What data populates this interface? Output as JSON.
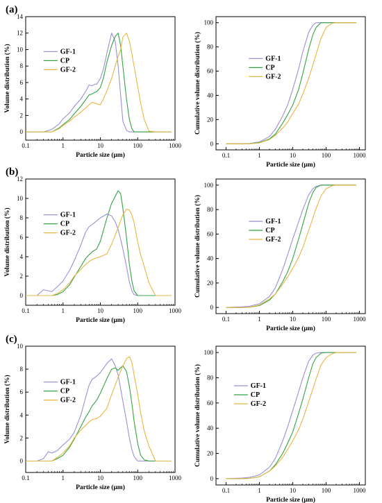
{
  "panel_labels": [
    "(a)",
    "(b)",
    "(c)"
  ],
  "series_colors": {
    "GF-1": "#9b8fd6",
    "CP": "#33a343",
    "GF-2": "#e8b540"
  },
  "chart_data": [
    {
      "type": "line",
      "panel": "(a)",
      "kind": "volume",
      "xlabel": "Particle size (μm)",
      "ylabel": "Volume distribution (%)",
      "xscale": "log",
      "xlim": [
        0.1,
        1000
      ],
      "ylim": [
        -1,
        14
      ],
      "xticks": [
        "0.1",
        "1",
        "10",
        "100",
        "1000"
      ],
      "yticks": [
        "0",
        "2",
        "4",
        "6",
        "8",
        "10",
        "12",
        "14"
      ],
      "legend": [
        "GF-1",
        "CP",
        "GF-2"
      ],
      "legend_position": "upper-left",
      "x": [
        0.1,
        0.3,
        0.5,
        0.8,
        1,
        1.5,
        2,
        3,
        4,
        5,
        6,
        7,
        8,
        10,
        12,
        15,
        20,
        25,
        30,
        35,
        40,
        50,
        60,
        70,
        80,
        100,
        120,
        150,
        200,
        300,
        500,
        800
      ],
      "series": [
        {
          "name": "GF-1",
          "values": [
            0,
            0,
            0.3,
            1,
            1.6,
            2.3,
            3.1,
            4,
            4.9,
            5.7,
            5.6,
            5.8,
            5.8,
            6.5,
            7.6,
            9.6,
            12,
            11,
            8,
            4.5,
            1.3,
            0.2,
            0,
            0,
            0,
            0,
            0,
            0,
            0,
            0,
            0,
            0
          ]
        },
        {
          "name": "CP",
          "values": [
            0,
            0,
            0,
            0.5,
            0.9,
            1.5,
            2.2,
            3.1,
            3.9,
            4.5,
            4.6,
            4.8,
            4.9,
            5.4,
            6.5,
            8.5,
            10.5,
            11.6,
            12,
            10.5,
            8,
            4,
            1.5,
            0.4,
            0,
            0,
            0,
            0,
            0,
            0,
            0,
            0
          ]
        },
        {
          "name": "GF-2",
          "values": [
            0,
            0,
            0,
            0.4,
            0.8,
            1.3,
            1.8,
            2.4,
            2.9,
            3.3,
            3.6,
            3.5,
            3.4,
            3.3,
            4,
            5,
            6.5,
            8,
            9.2,
            10,
            11.5,
            12,
            11,
            9.5,
            8,
            5.5,
            3.5,
            1.5,
            0.1,
            0,
            0,
            0
          ]
        }
      ]
    },
    {
      "type": "line",
      "panel": "(a)",
      "kind": "cumulative",
      "xlabel": "Particle size (μm)",
      "ylabel": "Cumulative volume distribution (%)",
      "xscale": "log",
      "xlim": [
        0.05,
        1500
      ],
      "ylim": [
        -5,
        105
      ],
      "xticks": [
        "0.1",
        "1",
        "10",
        "100",
        "1000"
      ],
      "yticks": [
        "0",
        "20",
        "40",
        "60",
        "80",
        "100"
      ],
      "legend": [
        "GF-1",
        "CP",
        "GF-2"
      ],
      "legend_position": "center",
      "x": [
        0.1,
        0.3,
        0.5,
        1,
        2,
        3,
        5,
        7,
        10,
        15,
        20,
        30,
        40,
        50,
        70,
        100,
        150,
        200,
        300,
        500,
        800
      ],
      "series": [
        {
          "name": "GF-1",
          "values": [
            0,
            0,
            0.2,
            1.5,
            6,
            12,
            23,
            32,
            45,
            62,
            76,
            92,
            98,
            100,
            100,
            100,
            100,
            100,
            100,
            100,
            100
          ]
        },
        {
          "name": "CP",
          "values": [
            0,
            0,
            0.1,
            1,
            4,
            8,
            17,
            24,
            32,
            45,
            58,
            78,
            90,
            96,
            100,
            100,
            100,
            100,
            100,
            100,
            100
          ]
        },
        {
          "name": "GF-2",
          "values": [
            0,
            0,
            0,
            0.8,
            3.5,
            7,
            13,
            18,
            25,
            33,
            41,
            54,
            65,
            74,
            87,
            96,
            99.5,
            100,
            100,
            100,
            100
          ]
        }
      ]
    },
    {
      "type": "line",
      "panel": "(b)",
      "kind": "volume",
      "xlabel": "Particle size (μm)",
      "ylabel": "Volume distribution (%)",
      "xscale": "log",
      "xlim": [
        0.1,
        1000
      ],
      "ylim": [
        -1,
        12
      ],
      "xticks": [
        "0.1",
        "1",
        "10",
        "100",
        "1000"
      ],
      "yticks": [
        "0",
        "2",
        "4",
        "6",
        "8",
        "10",
        "12"
      ],
      "legend": [
        "GF-1",
        "CP",
        "GF-2"
      ],
      "legend_position": "upper-left",
      "x": [
        0.1,
        0.2,
        0.3,
        0.5,
        0.7,
        1,
        1.5,
        2,
        3,
        4,
        5,
        6,
        8,
        10,
        15,
        20,
        25,
        30,
        35,
        40,
        50,
        60,
        70,
        80,
        100,
        120,
        150,
        200,
        300,
        500,
        800
      ],
      "series": [
        {
          "name": "GF-1",
          "values": [
            0,
            0,
            0.6,
            0.4,
            0.9,
            1.5,
            2.6,
            3.6,
            5.2,
            6.5,
            7.1,
            7.3,
            7.7,
            8,
            8.4,
            8.2,
            7.6,
            6.8,
            5.8,
            4.8,
            3,
            1.4,
            0.5,
            0.1,
            0,
            0,
            0,
            0,
            0,
            0,
            0
          ]
        },
        {
          "name": "CP",
          "values": [
            0,
            0,
            0,
            0,
            0.1,
            0.4,
            1.1,
            1.9,
            3,
            3.8,
            4.2,
            4.5,
            4.8,
            5.6,
            8,
            9.5,
            10.2,
            10.8,
            10.5,
            9,
            6,
            3.2,
            1.5,
            0.5,
            0,
            0,
            0,
            0,
            0,
            0,
            0
          ]
        },
        {
          "name": "GF-2",
          "values": [
            0,
            0,
            0,
            0,
            0.2,
            0.6,
            1.3,
            2,
            2.7,
            3.2,
            3.5,
            3.7,
            3.9,
            4,
            4.3,
            5.3,
            6.2,
            7,
            7.7,
            8.3,
            8.9,
            8.8,
            8.3,
            7.5,
            5.5,
            4.2,
            3,
            1.3,
            0,
            0,
            0
          ]
        }
      ]
    },
    {
      "type": "line",
      "panel": "(b)",
      "kind": "cumulative",
      "xlabel": "Particle size (μm)",
      "ylabel": "Cumulative volume distribution (%)",
      "xscale": "log",
      "xlim": [
        0.05,
        1500
      ],
      "ylim": [
        -5,
        105
      ],
      "xticks": [
        "0.1",
        "1",
        "10",
        "100",
        "1000"
      ],
      "yticks": [
        "0",
        "20",
        "40",
        "60",
        "80",
        "100"
      ],
      "legend": [
        "GF-1",
        "CP",
        "GF-2"
      ],
      "legend_position": "center",
      "x": [
        0.1,
        0.3,
        0.5,
        1,
        2,
        3,
        5,
        7,
        10,
        15,
        20,
        30,
        40,
        50,
        70,
        100,
        150,
        200,
        300,
        500,
        800
      ],
      "series": [
        {
          "name": "GF-1",
          "values": [
            0,
            0.5,
            1,
            3,
            9,
            16,
            31,
            43,
            56,
            70,
            80,
            92,
            97,
            99,
            100,
            100,
            100,
            100,
            100,
            100,
            100
          ]
        },
        {
          "name": "CP",
          "values": [
            0,
            0,
            0.2,
            1.5,
            6,
            11,
            21,
            29,
            40,
            56,
            68,
            85,
            94,
            98,
            100,
            100,
            100,
            100,
            100,
            100,
            100
          ]
        },
        {
          "name": "GF-2",
          "values": [
            0,
            0,
            0.3,
            2,
            7,
            11,
            19,
            25,
            32,
            41,
            49,
            63,
            73,
            81,
            91,
            97,
            99.5,
            100,
            100,
            100,
            100
          ]
        }
      ]
    },
    {
      "type": "line",
      "panel": "(c)",
      "kind": "volume",
      "xlabel": "Particle size (μm)",
      "ylabel": "Volume distribution (%)",
      "xscale": "log",
      "xlim": [
        0.1,
        1000
      ],
      "ylim": [
        -1,
        10
      ],
      "xticks": [
        "0.1",
        "1",
        "10",
        "100",
        "1000"
      ],
      "yticks": [
        "0",
        "2",
        "4",
        "6",
        "8",
        "10"
      ],
      "legend": [
        "GF-1",
        "CP",
        "GF-2"
      ],
      "legend_position": "left",
      "x": [
        0.1,
        0.2,
        0.3,
        0.4,
        0.5,
        0.7,
        1,
        1.5,
        2,
        3,
        4,
        5,
        6,
        8,
        10,
        15,
        20,
        25,
        30,
        40,
        50,
        60,
        70,
        80,
        100,
        120,
        150,
        200,
        300,
        500,
        800
      ],
      "series": [
        {
          "name": "GF-1",
          "values": [
            0,
            0,
            0.2,
            0.8,
            0.7,
            0.9,
            1.4,
            1.9,
            2.5,
            4,
            5.5,
            6.6,
            7.1,
            7.4,
            7.7,
            8.5,
            8.9,
            8.3,
            7.5,
            5.2,
            3.5,
            2,
            1,
            0.4,
            0,
            0,
            0,
            0,
            0,
            0,
            0
          ]
        },
        {
          "name": "CP",
          "values": [
            0,
            0,
            0,
            0,
            0,
            0.2,
            0.5,
            1.2,
            1.9,
            3,
            3.8,
            4.3,
            4.8,
            5.3,
            5.9,
            7.2,
            8,
            8.1,
            7.9,
            8.3,
            7.8,
            6.5,
            5,
            3.5,
            1.5,
            0.5,
            0.1,
            0,
            0,
            0,
            0
          ]
        },
        {
          "name": "GF-2",
          "values": [
            0,
            0,
            0,
            0,
            0,
            0.3,
            0.7,
            1.3,
            2,
            2.7,
            3.1,
            3.4,
            3.6,
            3.7,
            3.9,
            4.6,
            5.8,
            6.6,
            7.3,
            8.3,
            8.9,
            9.1,
            8.6,
            7.5,
            5.8,
            4.2,
            2.6,
            1.3,
            0,
            0,
            0
          ]
        }
      ]
    },
    {
      "type": "line",
      "panel": "(c)",
      "kind": "cumulative",
      "xlabel": "Particle size (μm)",
      "ylabel": "Cumulative volume distribution (%)",
      "xscale": "log",
      "xlim": [
        0.05,
        1500
      ],
      "ylim": [
        -5,
        105
      ],
      "xticks": [
        "0.1",
        "1",
        "10",
        "100",
        "1000"
      ],
      "yticks": [
        "0",
        "20",
        "40",
        "60",
        "80",
        "100"
      ],
      "legend": [
        "GF-1",
        "CP",
        "GF-2"
      ],
      "legend_position": "upper-left",
      "x": [
        0.1,
        0.3,
        0.5,
        1,
        2,
        3,
        5,
        7,
        10,
        15,
        20,
        30,
        40,
        50,
        70,
        100,
        150,
        200,
        300,
        500,
        800
      ],
      "series": [
        {
          "name": "GF-1",
          "values": [
            0,
            0.5,
            1,
            3,
            9,
            16,
            30,
            41,
            54,
            69,
            80,
            93,
            98,
            99.5,
            100,
            100,
            100,
            100,
            100,
            100,
            100
          ]
        },
        {
          "name": "CP",
          "values": [
            0,
            0,
            0.2,
            1.5,
            6,
            11,
            20,
            28,
            37,
            52,
            63,
            80,
            91,
            96,
            99.5,
            100,
            100,
            100,
            100,
            100,
            100
          ]
        },
        {
          "name": "GF-2",
          "values": [
            0,
            0,
            0.2,
            1.5,
            6,
            10,
            17,
            23,
            30,
            39,
            47,
            61,
            71,
            79,
            90,
            96,
            99,
            100,
            100,
            100,
            100
          ]
        }
      ]
    }
  ]
}
